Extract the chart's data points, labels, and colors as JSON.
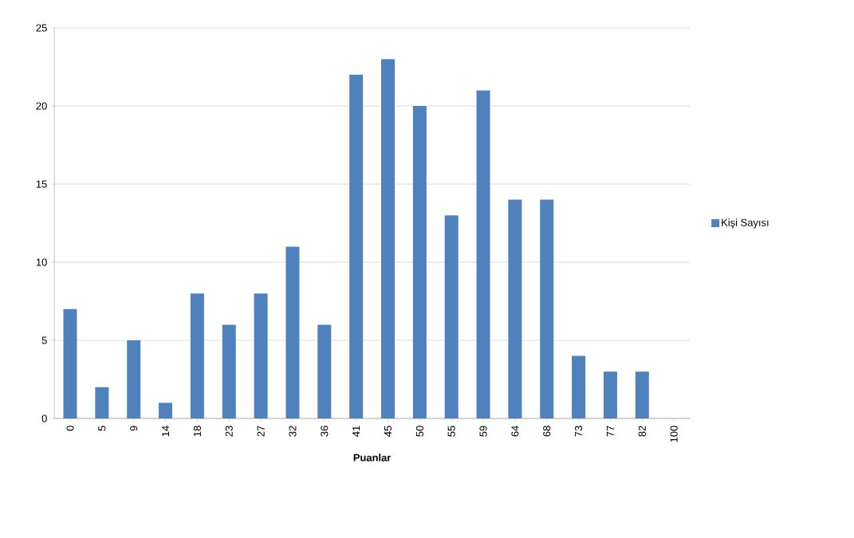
{
  "chart_data": {
    "type": "bar",
    "xlabel": "Puanlar",
    "categories": [
      "0",
      "5",
      "9",
      "14",
      "18",
      "23",
      "27",
      "32",
      "36",
      "41",
      "45",
      "50",
      "55",
      "59",
      "64",
      "68",
      "73",
      "77",
      "82",
      "100"
    ],
    "series": [
      {
        "name": "Kişi Sayısı",
        "color": "#4f81bd",
        "values": [
          7,
          2,
          5,
          1,
          8,
          6,
          8,
          11,
          6,
          22,
          23,
          20,
          13,
          21,
          14,
          14,
          4,
          3,
          3,
          null
        ]
      }
    ],
    "ylim": [
      0,
      25
    ],
    "yticks": [
      0,
      5,
      10,
      15,
      20,
      25
    ],
    "grid": "y",
    "legend": "right"
  }
}
